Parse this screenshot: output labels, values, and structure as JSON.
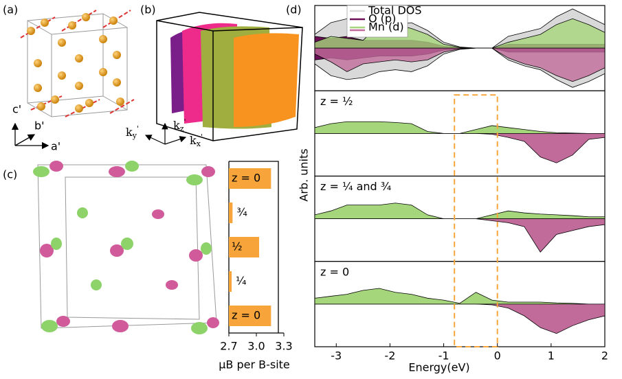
{
  "panel_labels": [
    "(a)",
    "(b)",
    "(c)",
    "(d)"
  ],
  "axes_a": [
    "c'",
    "b'",
    "a'"
  ],
  "axes_b": [
    {
      "base": "k",
      "sub": "y",
      "sup": "'"
    },
    {
      "base": "k",
      "sub": "z",
      "sup": "'"
    },
    {
      "base": "k",
      "sub": "x",
      "sup": "'"
    }
  ],
  "chart_data": [
    {
      "type": "bar",
      "orientation": "horizontal",
      "categories": [
        "z = 0",
        "¾",
        "½",
        "¼",
        "z = 0"
      ],
      "values": [
        3.16,
        2.74,
        3.03,
        2.73,
        3.16
      ],
      "color": "#f7a53b",
      "xlim": [
        2.7,
        3.3
      ],
      "xticks": [
        2.7,
        {
          "value": 3,
          "label": "3.0"
        },
        3.3
      ],
      "xlabel": "μB per B-site"
    },
    {
      "type": "area",
      "xlabel": "Energy(eV)",
      "ylabel": "Arb. units",
      "x": [
        -3.4,
        -3.1,
        -2.8,
        -2.5,
        -2.2,
        -1.9,
        -1.6,
        -1.3,
        -1.0,
        -0.7,
        -0.4,
        -0.1,
        0.2,
        0.5,
        0.8,
        1.1,
        1.4,
        1.7,
        2.0
      ],
      "xlim": [
        -3.4,
        2
      ],
      "xticks": [
        -3,
        -2,
        -1,
        0,
        1,
        2
      ],
      "ylim": [
        -1,
        1
      ],
      "highlight": [
        -0.8,
        0
      ],
      "highlight_color": "#f7a53b",
      "panels": [
        {
          "series": [
            {
              "name": "Total DOS",
              "color": "#d9d9d9",
              "values": [
                0.35,
                0.65,
                0.75,
                0.7,
                0.6,
                0.6,
                0.65,
                0.45,
                0.15,
                0.03,
                0,
                0,
                0.3,
                0.4,
                0.5,
                0.8,
                1.0,
                0.8,
                0.6
              ]
            },
            {
              "color": "#d9d9d9",
              "values": [
                -0.4,
                -0.7,
                -0.8,
                -0.75,
                -0.6,
                -0.55,
                -0.6,
                -0.45,
                -0.15,
                -0.03,
                0,
                0,
                -0.3,
                -0.45,
                -0.55,
                -0.8,
                -1.0,
                -0.85,
                -0.65
              ]
            },
            {
              "name": "O (p)",
              "color": "#6b0f57",
              "values": [
                0.3,
                0.25,
                0.3,
                0.2,
                0.2,
                0.2,
                0.2,
                0.15,
                0.05,
                0.02,
                0,
                0,
                0.1,
                0.1,
                0.1,
                0.1,
                0.1,
                0.1,
                0.1
              ]
            },
            {
              "color": "#6b0f57",
              "values": [
                -0.3,
                -0.25,
                -0.3,
                -0.25,
                -0.2,
                -0.2,
                -0.2,
                -0.15,
                -0.05,
                -0.02,
                0,
                0,
                -0.1,
                -0.1,
                -0.1,
                -0.1,
                -0.1,
                -0.1,
                -0.1
              ]
            },
            {
              "name": "Mn (d)",
              "color": "#a6d67c",
              "values": [
                0.15,
                0.3,
                0.25,
                0.2,
                0.6,
                0.6,
                0.5,
                0.35,
                0.1,
                0.02,
                0,
                0,
                0.15,
                0.25,
                0.35,
                0.6,
                0.75,
                0.6,
                0.4
              ]
            },
            {
              "color": "#c06b9a",
              "values": [
                -0.15,
                -0.35,
                -0.6,
                -0.4,
                -0.35,
                -0.3,
                -0.35,
                -0.3,
                -0.1,
                -0.02,
                0,
                0,
                -0.25,
                -0.4,
                -0.5,
                -0.7,
                -0.85,
                -0.7,
                -0.5
              ]
            }
          ]
        },
        {
          "label": "z = ½",
          "series": [
            {
              "color": "#a6d67c",
              "values": [
                0.15,
                0.25,
                0.3,
                0.3,
                0.3,
                0.28,
                0.25,
                0.05,
                0,
                0,
                0.1,
                0.2,
                0.15,
                0.1,
                0.05,
                0.02,
                0.01,
                0,
                0
              ]
            },
            {
              "color": "#c06b9a",
              "values": [
                0,
                0,
                0,
                0,
                0,
                0,
                0,
                0,
                0,
                0,
                0,
                -0.02,
                -0.1,
                -0.2,
                -0.6,
                -0.75,
                -0.55,
                -0.15,
                -0.1
              ]
            }
          ]
        },
        {
          "label": "z = ¼ and ¾",
          "series": [
            {
              "color": "#a6d67c",
              "values": [
                0.1,
                0.2,
                0.35,
                0.35,
                0.35,
                0.4,
                0.35,
                0.1,
                0,
                0,
                0,
                0.1,
                0.2,
                0.15,
                0.12,
                0.1,
                0.08,
                0.05,
                0.05
              ]
            },
            {
              "color": "#c06b9a",
              "values": [
                0,
                0,
                0,
                0,
                0,
                0,
                0,
                0,
                0,
                0,
                0,
                -0.05,
                -0.1,
                -0.2,
                -0.85,
                -0.4,
                -0.3,
                -0.2,
                -0.15
              ]
            }
          ]
        },
        {
          "label": "z = 0",
          "series": [
            {
              "color": "#a6d67c",
              "values": [
                0.15,
                0.2,
                0.25,
                0.35,
                0.4,
                0.3,
                0.25,
                0.15,
                0.1,
                0.02,
                0.3,
                0.1,
                0.05,
                0.05,
                0.05,
                0.03,
                0.02,
                0,
                0
              ]
            },
            {
              "color": "#c06b9a",
              "values": [
                0,
                0,
                0,
                0,
                0,
                0,
                0,
                0,
                0,
                0,
                0,
                -0.02,
                -0.1,
                -0.3,
                -0.6,
                -0.75,
                -0.55,
                -0.4,
                -0.3
              ]
            }
          ]
        }
      ]
    }
  ]
}
